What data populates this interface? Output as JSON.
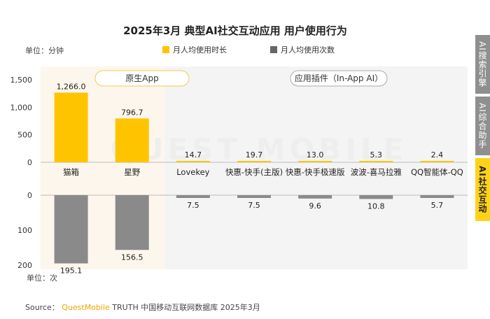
{
  "title": "2025年3月 典型AI社交互动应用 用户使用行为",
  "unit_top": "单位：分钟",
  "unit_bottom": "单位：次",
  "source": {
    "prefix": "Source： ",
    "brand": "QuestMobile",
    "rest": " TRUTH 中国移动互联网数据库 2025年3月"
  },
  "watermark": "QUEST MOBILE",
  "side_tabs": [
    {
      "label": "AI搜索引擎",
      "active": false
    },
    {
      "label": "AI综合助手",
      "active": false
    },
    {
      "label": "AI社交互动",
      "active": true
    }
  ],
  "group_labels": {
    "native": "原生App",
    "plugin": "应用插件（In-App AI）"
  },
  "colors": {
    "duration": "#ffc400",
    "count": "#8a8a8a",
    "native_bg": "#fdf6ec",
    "plugin_bg": "#f4f4f4"
  },
  "chart_data": {
    "type": "bar",
    "categories": [
      "猫箱",
      "星野",
      "Lovekey",
      "快惠-快手(主版)",
      "快惠-快手极速版",
      "波波-喜马拉雅",
      "QQ智能体-QQ"
    ],
    "series": [
      {
        "name": "月人均使用时长",
        "values": [
          1266.0,
          796.7,
          14.7,
          19.7,
          13.0,
          5.3,
          2.4
        ],
        "labels": [
          "1,266.0",
          "796.7",
          "14.7",
          "19.7",
          "13.0",
          "5.3",
          "2.4"
        ]
      },
      {
        "name": "月人均使用次数",
        "values": [
          195.1,
          156.5,
          7.5,
          7.5,
          9.6,
          10.8,
          5.7
        ],
        "labels": [
          "195.1",
          "156.5",
          "7.5",
          "7.5",
          "9.6",
          "10.8",
          "5.7"
        ]
      }
    ],
    "top_axis": {
      "ylim": [
        0,
        1500
      ],
      "ticks": [
        "0",
        "500",
        "1,000",
        "1,500"
      ],
      "tick_values": [
        0,
        500,
        1000,
        1500
      ]
    },
    "bottom_axis": {
      "ylim": [
        0,
        200
      ],
      "ticks": [
        "0",
        "100",
        "200"
      ],
      "tick_values": [
        0,
        100,
        200
      ],
      "inverted": true
    },
    "groups": [
      {
        "key": "native",
        "indices": [
          0,
          1
        ]
      },
      {
        "key": "plugin",
        "indices": [
          2,
          3,
          4,
          5,
          6
        ]
      }
    ]
  }
}
